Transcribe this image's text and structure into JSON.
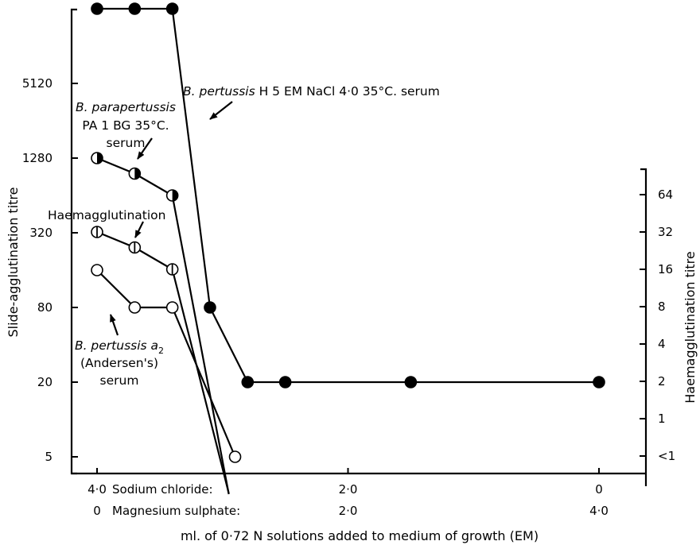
{
  "chart_data": {
    "type": "line",
    "xlabel": "ml. of 0·72 N solutions added to medium of growth (EM)",
    "ylabel_left": "Slide-agglutination titre",
    "ylabel_right": "Haemagglutination titre",
    "x_scale": "linear",
    "xlim": [
      4.0,
      0.0
    ],
    "x_ticks": [
      4.0,
      2.0,
      0.0
    ],
    "x_tick_rows": [
      {
        "name": "Sodium chloride:",
        "labels": [
          "4·0",
          "2·0",
          "0"
        ]
      },
      {
        "name": "Magnesium sulphate:",
        "labels": [
          "0",
          "2·0",
          "4·0"
        ]
      }
    ],
    "y_left_scale": "log4",
    "y_left_ticks": [
      5,
      20,
      80,
      320,
      1280,
      5120
    ],
    "y_left_tick_labels": [
      "5",
      "20",
      "80",
      "320",
      "1280",
      "5120"
    ],
    "y_right_scale": "log2",
    "y_right_ticks": [
      0.5,
      1,
      2,
      4,
      8,
      16,
      32,
      64
    ],
    "y_right_tick_labels": [
      "<1",
      "1",
      "2",
      "4",
      "8",
      "16",
      "32",
      "64"
    ],
    "series": [
      {
        "name": "B. pertussis H 5 EM NaCl 4·0 35°C. serum",
        "axis": "left",
        "marker": "filled",
        "x": [
          4.0,
          3.7,
          3.4,
          3.1,
          2.8,
          2.5,
          1.5,
          0.0
        ],
        "y": [
          20480,
          20480,
          20480,
          80,
          20,
          20,
          20,
          20
        ]
      },
      {
        "name": "B. parapertussis PA 1 BG 35°C. serum",
        "axis": "left",
        "marker": "half-filled",
        "x": [
          4.0,
          3.7,
          3.4,
          2.95
        ],
        "y": [
          1280,
          960,
          640,
          2.5
        ]
      },
      {
        "name": "Haemagglutination",
        "axis": "right",
        "marker": "vertical-bar",
        "x": [
          4.0,
          3.7,
          3.4,
          2.95
        ],
        "y": [
          32,
          24,
          16,
          0.25
        ]
      },
      {
        "name": "B. pertussis a2 (Andersen's) serum",
        "axis": "left",
        "marker": "open",
        "x": [
          4.0,
          3.7,
          3.4,
          2.9
        ],
        "y": [
          160,
          80,
          80,
          5
        ]
      }
    ],
    "annotations": {
      "pertussis_h5": {
        "italic": "B. pertussis",
        "rest": " H 5 EM NaCl 4·0   35°C. serum"
      },
      "parapertussis": {
        "italic": "B. parapertussis",
        "line2": "PA 1 BG 35°C.",
        "line3": "serum"
      },
      "haemagglutination": "Haemagglutination",
      "andersen": {
        "italic": "B. pertussis a",
        "subscript": "2",
        "line2": "(Andersen's)",
        "line3": "serum"
      }
    },
    "grid": false,
    "legend": "none"
  }
}
